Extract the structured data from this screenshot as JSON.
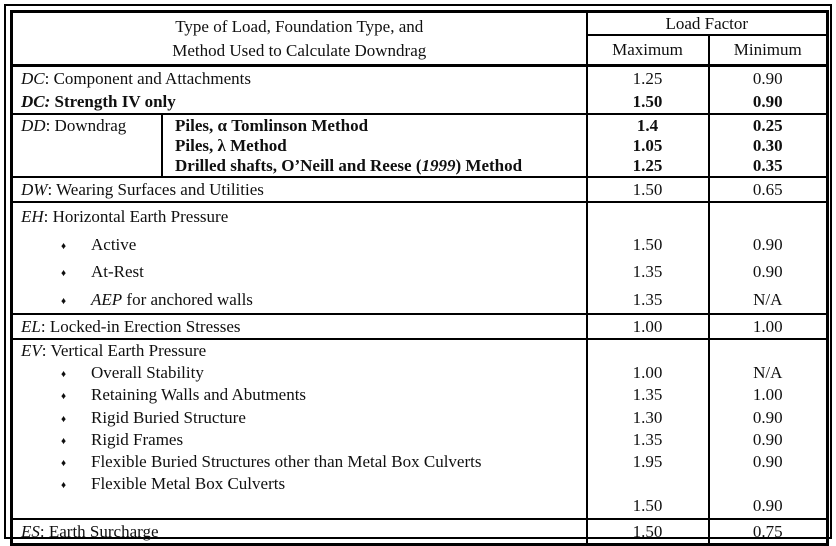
{
  "header": {
    "title_line1": "Type of Load, Foundation Type, and",
    "title_line2": "Method Used to Calculate Downdrag",
    "load_factor": "Load Factor",
    "maximum": "Maximum",
    "minimum": "Minimum"
  },
  "bullet": "♦",
  "dc": {
    "component": {
      "code": "DC",
      "label": ": Component and Attachments",
      "max": "1.25",
      "min": "0.90"
    },
    "strength4": {
      "code": "DC:",
      "label": " Strength IV only",
      "max": "1.50",
      "min": "0.90"
    }
  },
  "dd": {
    "code": "DD",
    "label": ": Downdrag",
    "methods": {
      "tomlinson": {
        "label": "Piles, α Tomlinson Method",
        "max": "1.4",
        "min": "0.25"
      },
      "lambda": {
        "label": "Piles, λ Method",
        "max": "1.05",
        "min": "0.30"
      },
      "drilled": {
        "pre": "Drilled shafts, O’Neill and Reese (",
        "year": "1999",
        "post": ") Method",
        "max": "1.25",
        "min": "0.35"
      }
    }
  },
  "dw": {
    "code": "DW",
    "label": ": Wearing Surfaces and Utilities",
    "max": "1.50",
    "min": "0.65"
  },
  "eh": {
    "code": "EH",
    "label": ": Horizontal Earth Pressure",
    "items": {
      "active": {
        "label": "Active",
        "max": "1.50",
        "min": "0.90"
      },
      "atrest": {
        "label": "At-Rest",
        "max": "1.35",
        "min": "0.90"
      },
      "aep": {
        "code": "AEP",
        "label": " for anchored walls",
        "max": "1.35",
        "min": "N/A"
      }
    }
  },
  "el": {
    "code": "EL",
    "label": ": Locked-in Erection Stresses",
    "max": "1.00",
    "min": "1.00"
  },
  "ev": {
    "code": "EV",
    "label": ": Vertical Earth Pressure",
    "items": {
      "overall": {
        "label": "Overall Stability",
        "max": "1.00",
        "min": "N/A"
      },
      "retaining": {
        "label": "Retaining Walls and Abutments",
        "max": "1.35",
        "min": "1.00"
      },
      "rigid_buried": {
        "label": "Rigid Buried Structure",
        "max": "1.30",
        "min": "0.90"
      },
      "rigid_frames": {
        "label": "Rigid Frames",
        "max": "1.35",
        "min": "0.90"
      },
      "flex_buried": {
        "label": "Flexible Buried Structures other than Metal Box Culverts",
        "max": "1.95",
        "min": "0.90"
      },
      "flex_metal": {
        "label": "Flexible Metal Box Culverts",
        "max": "1.50",
        "min": "0.90"
      }
    }
  },
  "es": {
    "code": "ES",
    "label": ": Earth Surcharge",
    "max": "1.50",
    "min": "0.75"
  }
}
